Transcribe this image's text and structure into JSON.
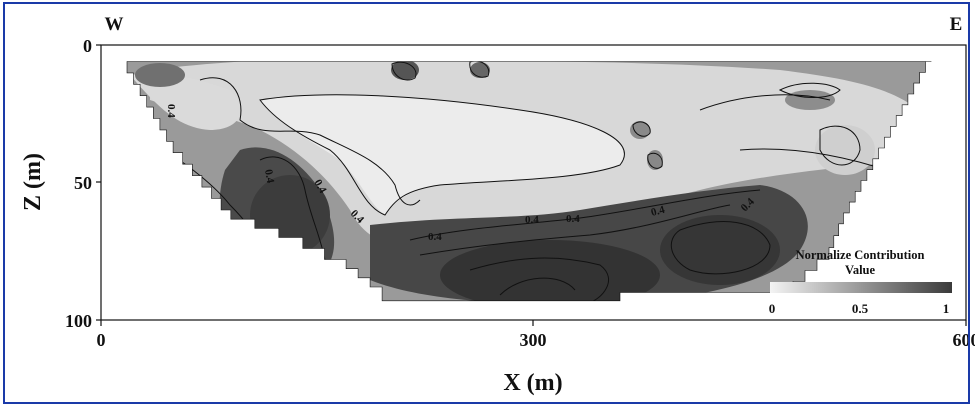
{
  "chart_data": {
    "type": "heatmap",
    "xlabel": "X (m)",
    "ylabel": "Z (m)",
    "xlim": [
      0,
      600
    ],
    "ylim": [
      100,
      0
    ],
    "x_ticks": [
      "0",
      "300",
      "600"
    ],
    "y_ticks": [
      "0",
      "50",
      "100"
    ],
    "corner_labels": {
      "left": "W",
      "right": "E"
    },
    "contour_level_labels": [
      "0.4",
      "0.4",
      "0.4",
      "0.4",
      "0.4",
      "0.4",
      "0.4",
      "0.4",
      "0.4"
    ],
    "colorbar": {
      "title_line1": "Normalize Contribution",
      "title_line2": "Value",
      "ticks": [
        "0",
        "0.5",
        "1"
      ],
      "range": [
        0,
        1
      ],
      "colors": [
        "#f4f4f4",
        "#3a3a3a"
      ]
    },
    "section_outline_xz": [
      [
        18,
        6
      ],
      [
        576,
        6
      ],
      [
        515,
        65
      ],
      [
        505,
        78
      ],
      [
        480,
        90
      ],
      [
        360,
        93
      ],
      [
        255,
        93
      ],
      [
        195,
        88
      ],
      [
        170,
        78
      ],
      [
        140,
        70
      ],
      [
        90,
        60
      ],
      [
        50,
        35
      ],
      [
        18,
        6
      ]
    ]
  }
}
